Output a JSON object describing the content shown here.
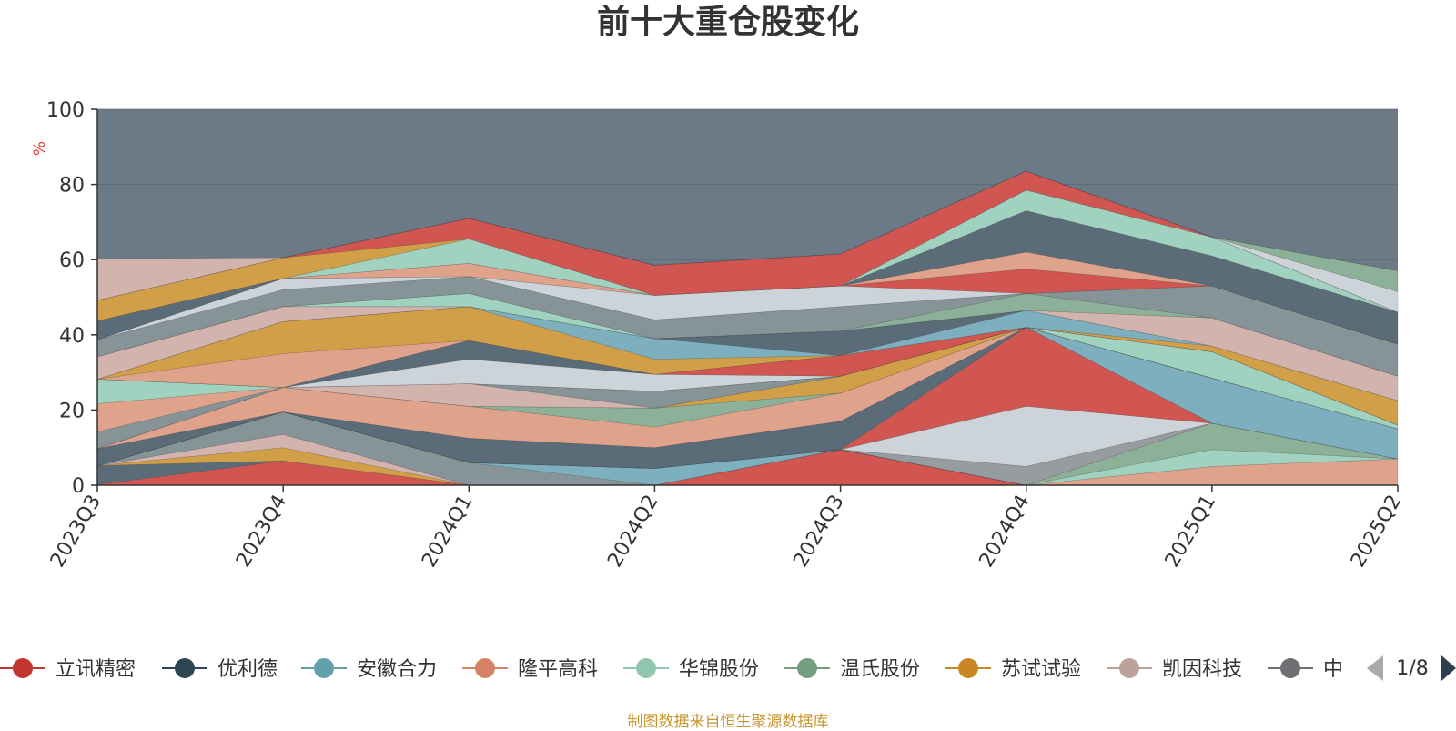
{
  "title": "前十大重仓股变化",
  "source_note": "制图数据来自恒生聚源数据库",
  "legend_page": "1/8",
  "colors": {
    "plot_background": "#6b7a86",
    "axis": "#333333",
    "unit_label": "#e03b3b",
    "pager_active": "#2c3e50",
    "pager_inactive": "#aaaaaa"
  },
  "legend_icons": {
    "prev": "triangle-left-icon",
    "next": "triangle-right-icon"
  },
  "chart_data": {
    "type": "area",
    "stacked": true,
    "xlabel": "",
    "ylabel": "%",
    "ylim": [
      0,
      100
    ],
    "yticks": [
      0,
      20,
      40,
      60,
      80,
      100
    ],
    "grid": true,
    "legend_position": "bottom",
    "categories": [
      "2023Q3",
      "2023Q4",
      "2024Q1",
      "2024Q2",
      "2024Q3",
      "2024Q4",
      "2025Q1",
      "2025Q2"
    ],
    "series": [
      {
        "name": "立讯精密",
        "color": "#d9534f",
        "values": [
          0.2,
          6.5,
          0,
          0,
          9.5,
          0,
          0,
          0
        ]
      },
      {
        "name": "",
        "color": "#5a6b78",
        "values": [
          5.0,
          0,
          0,
          0,
          0,
          0,
          0,
          0
        ]
      },
      {
        "name": "",
        "color": "#d9a143",
        "values": [
          0,
          3.5,
          0,
          0,
          0,
          0,
          0,
          0
        ]
      },
      {
        "name": "",
        "color": "#dab7b0",
        "values": [
          0,
          3.5,
          0,
          0,
          0,
          0,
          0,
          0
        ]
      },
      {
        "name": "",
        "color": "#899499",
        "values": [
          0,
          6.0,
          6.0,
          0,
          0,
          0,
          0,
          0
        ]
      },
      {
        "name": "安徽合力",
        "color": "#7fb3c3",
        "values": [
          0,
          0,
          0,
          4.5,
          0,
          0,
          0,
          0
        ]
      },
      {
        "name": "",
        "color": "#e8a58c",
        "values": [
          0,
          0,
          0,
          0,
          0,
          0,
          5.0,
          7.0
        ]
      },
      {
        "name": "华锦股份",
        "color": "#a6d7c4",
        "values": [
          0,
          0,
          0,
          0,
          0,
          0,
          4.5,
          0
        ]
      },
      {
        "name": "",
        "color": "#8fb59a",
        "values": [
          0,
          0,
          0,
          0,
          0,
          0,
          7.0,
          0
        ]
      },
      {
        "name": "",
        "color": "#9b9ea2",
        "values": [
          0,
          0,
          0,
          0,
          0,
          5.0,
          0,
          0
        ]
      },
      {
        "name": "",
        "color": "#d5dae0",
        "values": [
          0,
          0,
          0,
          0,
          0,
          16.0,
          0,
          0
        ]
      },
      {
        "name": "",
        "color": "#d9534f",
        "values": [
          0,
          0,
          0,
          0,
          0,
          21.0,
          0,
          0
        ]
      },
      {
        "name": "优利德",
        "color": "#5a6b78",
        "values": [
          4.5,
          0,
          6.5,
          5.5,
          7.5,
          0,
          0,
          0
        ]
      },
      {
        "name": "",
        "color": "#7fb3c3",
        "values": [
          0,
          0,
          0,
          0,
          0,
          0,
          12.0,
          8.0
        ]
      },
      {
        "name": "",
        "color": "#e8a58c",
        "values": [
          0,
          6.5,
          8.5,
          5.5,
          7.5,
          0,
          0,
          0
        ]
      },
      {
        "name": "",
        "color": "#8fb59a",
        "values": [
          0,
          0,
          0,
          5.0,
          0,
          0,
          0,
          0
        ]
      },
      {
        "name": "",
        "color": "#d9a143",
        "values": [
          0,
          0,
          0,
          0,
          4.5,
          0,
          0,
          0
        ]
      },
      {
        "name": "",
        "color": "#dab7b0",
        "values": [
          0,
          0,
          6.0,
          0,
          0,
          0,
          0,
          0
        ]
      },
      {
        "name": "",
        "color": "#899499",
        "values": [
          4.5,
          0,
          0,
          4.5,
          0,
          0,
          0,
          0
        ]
      },
      {
        "name": "",
        "color": "#e8a58c",
        "values": [
          7.5,
          0,
          0,
          0,
          0,
          0,
          0,
          0
        ]
      },
      {
        "name": "",
        "color": "#a6d7c4",
        "values": [
          6.5,
          0,
          0,
          0,
          0,
          0,
          7.0,
          1.0
        ]
      },
      {
        "name": "",
        "color": "#d5dae0",
        "values": [
          0,
          0,
          6.5,
          4.5,
          0,
          0,
          0,
          0
        ]
      },
      {
        "name": "",
        "color": "#5a6b78",
        "values": [
          0,
          0,
          5.0,
          0,
          0,
          0,
          0,
          0
        ]
      },
      {
        "name": "",
        "color": "#d9534f",
        "values": [
          0,
          0,
          0,
          0,
          5.5,
          0,
          0,
          0
        ]
      },
      {
        "name": "",
        "color": "#e8a58c",
        "values": [
          0,
          9.0,
          0,
          0,
          0,
          0,
          0,
          0
        ]
      },
      {
        "name": "",
        "color": "#d9a143",
        "values": [
          0,
          8.5,
          9.0,
          4.0,
          0,
          0,
          1.5,
          6.5
        ]
      },
      {
        "name": "",
        "color": "#7fb3c3",
        "values": [
          0,
          0,
          0,
          5.5,
          0,
          4.5,
          0,
          0
        ]
      },
      {
        "name": "",
        "color": "#5a6b78",
        "values": [
          0,
          0,
          0,
          0,
          6.5,
          0,
          0,
          0
        ]
      },
      {
        "name": "",
        "color": "#dab7b0",
        "values": [
          6.0,
          4.0,
          0,
          0,
          0,
          0,
          7.5,
          6.5
        ]
      },
      {
        "name": "",
        "color": "#a6d7c4",
        "values": [
          0,
          0,
          3.5,
          0,
          0,
          0,
          0,
          0
        ]
      },
      {
        "name": "",
        "color": "#8fb59a",
        "values": [
          0,
          0,
          0,
          0,
          0,
          4.5,
          0,
          0
        ]
      },
      {
        "name": "",
        "color": "#899499",
        "values": [
          4.5,
          4.5,
          4.5,
          5.0,
          6.5,
          0,
          8.5,
          8.5
        ]
      },
      {
        "name": "",
        "color": "#d5dae0",
        "values": [
          0,
          3.0,
          0,
          6.5,
          5.5,
          0,
          0,
          0
        ]
      },
      {
        "name": "",
        "color": "#d9534f",
        "values": [
          0,
          0,
          0,
          0,
          0,
          6.5,
          0,
          0
        ]
      },
      {
        "name": "",
        "color": "#e8a58c",
        "values": [
          0,
          0,
          3.5,
          0,
          0,
          4.5,
          0,
          0
        ]
      },
      {
        "name": "",
        "color": "#5a6b78",
        "values": [
          5.0,
          0,
          0,
          0,
          0,
          11.0,
          8.0,
          8.5
        ]
      },
      {
        "name": "",
        "color": "#a6d7c4",
        "values": [
          0,
          0,
          6.5,
          0,
          0,
          5.5,
          5.0,
          0
        ]
      },
      {
        "name": "",
        "color": "#d9a143",
        "values": [
          5.5,
          5.5,
          0,
          0,
          0,
          0,
          0,
          0
        ]
      },
      {
        "name": "",
        "color": "#d9534f",
        "values": [
          0,
          0,
          5.5,
          8.0,
          8.5,
          5.0,
          0,
          0
        ]
      },
      {
        "name": "",
        "color": "#d5dae0",
        "values": [
          0,
          0,
          0,
          0,
          0,
          0,
          0,
          5.5
        ]
      },
      {
        "name": "",
        "color": "#8fb59a",
        "values": [
          0,
          0,
          0,
          0,
          0,
          0,
          0,
          5.5
        ]
      },
      {
        "name": "",
        "color": "#dab7b0",
        "values": [
          11.0,
          0,
          0,
          0,
          0,
          0,
          0,
          0
        ]
      }
    ]
  },
  "legend": [
    {
      "label": "立讯精密",
      "color": "#c23531"
    },
    {
      "label": "优利德",
      "color": "#2f4554"
    },
    {
      "label": "安徽合力",
      "color": "#61a0a8"
    },
    {
      "label": "隆平高科",
      "color": "#d48265"
    },
    {
      "label": "华锦股份",
      "color": "#91c7ae"
    },
    {
      "label": "温氏股份",
      "color": "#749f83"
    },
    {
      "label": "苏试试验",
      "color": "#ca8622"
    },
    {
      "label": "凯因科技",
      "color": "#bda29a"
    },
    {
      "label": "中",
      "color": "#6e7074"
    }
  ]
}
